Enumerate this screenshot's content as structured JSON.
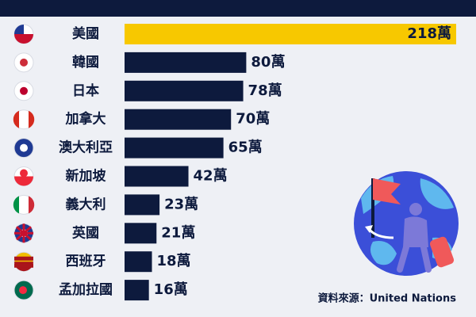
{
  "chart_data": {
    "type": "bar",
    "orientation": "horizontal",
    "categories": [
      "美國",
      "韓國",
      "日本",
      "加拿大",
      "澳大利亞",
      "新加坡",
      "義大利",
      "英國",
      "西班牙",
      "孟加拉國"
    ],
    "values": [
      218,
      80,
      78,
      70,
      65,
      42,
      23,
      21,
      18,
      16
    ],
    "value_labels": [
      "218萬",
      "80萬",
      "78萬",
      "70萬",
      "65萬",
      "42萬",
      "23萬",
      "21萬",
      "18萬",
      "16萬"
    ],
    "colors": [
      "#f7c800",
      "#0d1a3d",
      "#0d1a3d",
      "#0d1a3d",
      "#0d1a3d",
      "#0d1a3d",
      "#0d1a3d",
      "#0d1a3d",
      "#0d1a3d",
      "#0d1a3d"
    ],
    "source": "資料來源：United Nations"
  }
}
